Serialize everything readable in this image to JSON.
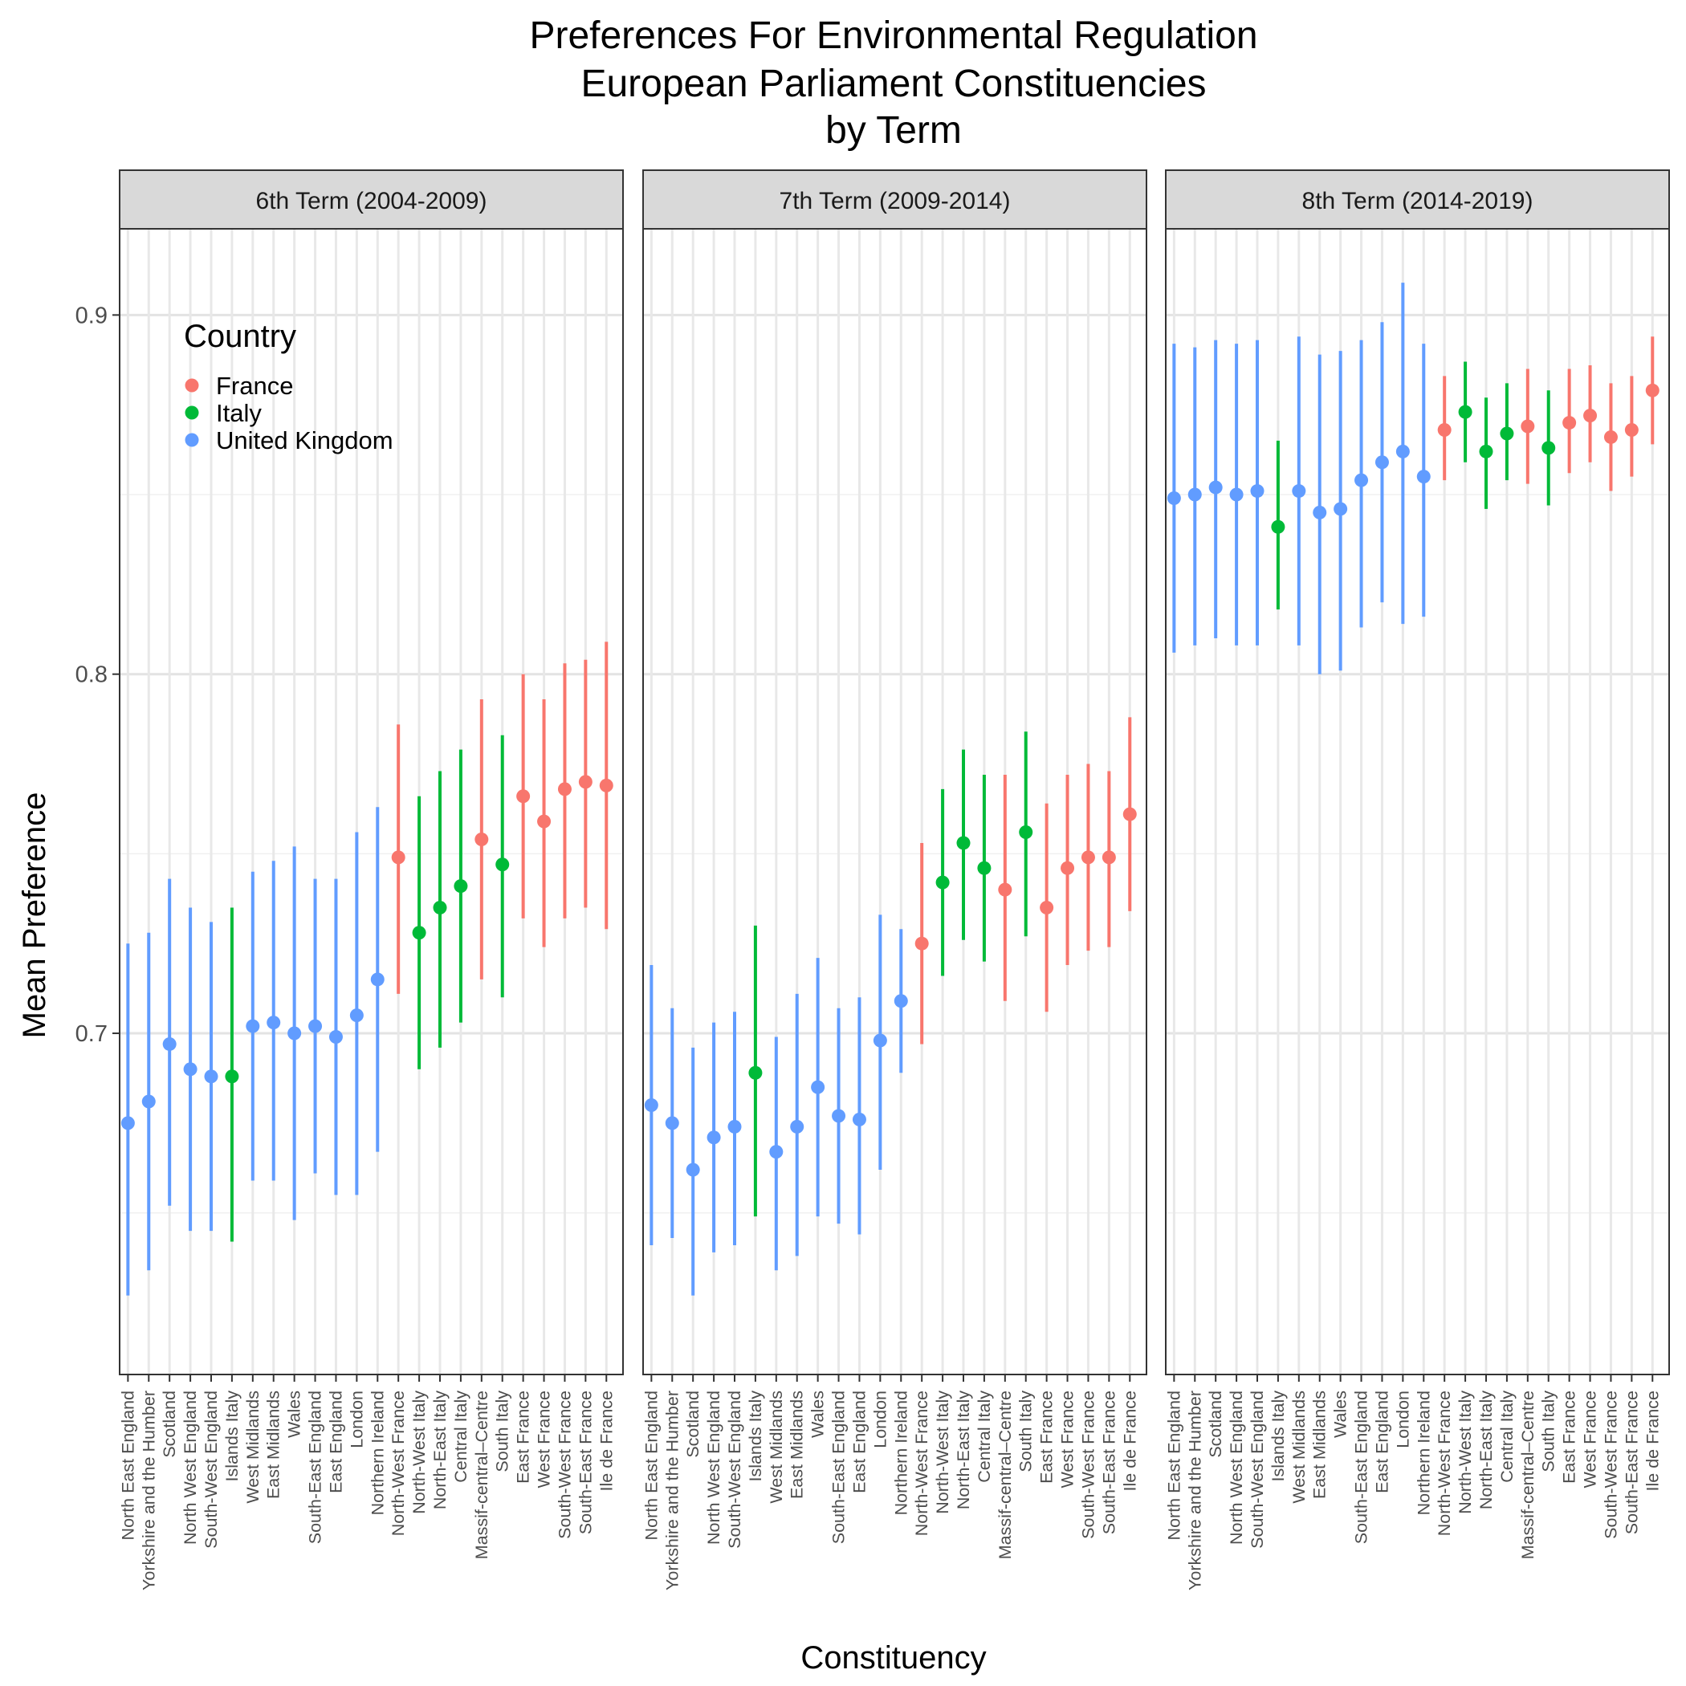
{
  "chart_data": {
    "type": "scatter",
    "title": [
      "Preferences For Environmental Regulation",
      "European Parliament Constituencies",
      "by Term"
    ],
    "xlabel": "Constituency",
    "ylabel": "Mean Preference",
    "ylim": [
      0.605,
      0.924
    ],
    "yticks": [
      0.7,
      0.8,
      0.9
    ],
    "ytick_labels": [
      "0.7",
      "0.8",
      "0.9"
    ],
    "grid": true,
    "legend": {
      "title": "Country",
      "position": "top-left inside first panel",
      "entries": [
        {
          "label": "France",
          "color": "#F8766D"
        },
        {
          "label": "Italy",
          "color": "#00BA38"
        },
        {
          "label": "United Kingdom",
          "color": "#619CFF"
        }
      ]
    },
    "panels": [
      {
        "title": "6th Term (2004-2009)",
        "points": [
          {
            "label": "North East England",
            "country": "United Kingdom",
            "mean": 0.675,
            "lower": 0.627,
            "upper": 0.725
          },
          {
            "label": "Yorkshire and the Humber",
            "country": "United Kingdom",
            "mean": 0.681,
            "lower": 0.634,
            "upper": 0.728
          },
          {
            "label": "Scotland",
            "country": "United Kingdom",
            "mean": 0.697,
            "lower": 0.652,
            "upper": 0.743
          },
          {
            "label": "North West England",
            "country": "United Kingdom",
            "mean": 0.69,
            "lower": 0.645,
            "upper": 0.735
          },
          {
            "label": "South-West England",
            "country": "United Kingdom",
            "mean": 0.688,
            "lower": 0.645,
            "upper": 0.731
          },
          {
            "label": "Islands Italy",
            "country": "Italy",
            "mean": 0.688,
            "lower": 0.642,
            "upper": 0.735
          },
          {
            "label": "West Midlands",
            "country": "United Kingdom",
            "mean": 0.702,
            "lower": 0.659,
            "upper": 0.745
          },
          {
            "label": "East Midlands",
            "country": "United Kingdom",
            "mean": 0.703,
            "lower": 0.659,
            "upper": 0.748
          },
          {
            "label": "Wales",
            "country": "United Kingdom",
            "mean": 0.7,
            "lower": 0.648,
            "upper": 0.752
          },
          {
            "label": "South-East England",
            "country": "United Kingdom",
            "mean": 0.702,
            "lower": 0.661,
            "upper": 0.743
          },
          {
            "label": "East England",
            "country": "United Kingdom",
            "mean": 0.699,
            "lower": 0.655,
            "upper": 0.743
          },
          {
            "label": "London",
            "country": "United Kingdom",
            "mean": 0.705,
            "lower": 0.655,
            "upper": 0.756
          },
          {
            "label": "Northern Ireland",
            "country": "United Kingdom",
            "mean": 0.715,
            "lower": 0.667,
            "upper": 0.763
          },
          {
            "label": "North-West France",
            "country": "France",
            "mean": 0.749,
            "lower": 0.711,
            "upper": 0.786
          },
          {
            "label": "North-West Italy",
            "country": "Italy",
            "mean": 0.728,
            "lower": 0.69,
            "upper": 0.766
          },
          {
            "label": "North-East Italy",
            "country": "Italy",
            "mean": 0.735,
            "lower": 0.696,
            "upper": 0.773
          },
          {
            "label": "Central Italy",
            "country": "Italy",
            "mean": 0.741,
            "lower": 0.703,
            "upper": 0.779
          },
          {
            "label": "Massif-central–Centre",
            "country": "France",
            "mean": 0.754,
            "lower": 0.715,
            "upper": 0.793
          },
          {
            "label": "South Italy",
            "country": "Italy",
            "mean": 0.747,
            "lower": 0.71,
            "upper": 0.783
          },
          {
            "label": "East France",
            "country": "France",
            "mean": 0.766,
            "lower": 0.732,
            "upper": 0.8
          },
          {
            "label": "West France",
            "country": "France",
            "mean": 0.759,
            "lower": 0.724,
            "upper": 0.793
          },
          {
            "label": "South-West France",
            "country": "France",
            "mean": 0.768,
            "lower": 0.732,
            "upper": 0.803
          },
          {
            "label": "South-East France",
            "country": "France",
            "mean": 0.77,
            "lower": 0.735,
            "upper": 0.804
          },
          {
            "label": "Ile de France",
            "country": "France",
            "mean": 0.769,
            "lower": 0.729,
            "upper": 0.809
          }
        ]
      },
      {
        "title": "7th Term (2009-2014)",
        "points": [
          {
            "label": "North East England",
            "country": "United Kingdom",
            "mean": 0.68,
            "lower": 0.641,
            "upper": 0.719
          },
          {
            "label": "Yorkshire and the Humber",
            "country": "United Kingdom",
            "mean": 0.675,
            "lower": 0.643,
            "upper": 0.707
          },
          {
            "label": "Scotland",
            "country": "United Kingdom",
            "mean": 0.662,
            "lower": 0.627,
            "upper": 0.696
          },
          {
            "label": "North West England",
            "country": "United Kingdom",
            "mean": 0.671,
            "lower": 0.639,
            "upper": 0.703
          },
          {
            "label": "South-West England",
            "country": "United Kingdom",
            "mean": 0.674,
            "lower": 0.641,
            "upper": 0.706
          },
          {
            "label": "Islands Italy",
            "country": "Italy",
            "mean": 0.689,
            "lower": 0.649,
            "upper": 0.73
          },
          {
            "label": "West Midlands",
            "country": "United Kingdom",
            "mean": 0.667,
            "lower": 0.634,
            "upper": 0.699
          },
          {
            "label": "East Midlands",
            "country": "United Kingdom",
            "mean": 0.674,
            "lower": 0.638,
            "upper": 0.711
          },
          {
            "label": "Wales",
            "country": "United Kingdom",
            "mean": 0.685,
            "lower": 0.649,
            "upper": 0.721
          },
          {
            "label": "South-East England",
            "country": "United Kingdom",
            "mean": 0.677,
            "lower": 0.647,
            "upper": 0.707
          },
          {
            "label": "East England",
            "country": "United Kingdom",
            "mean": 0.676,
            "lower": 0.644,
            "upper": 0.71
          },
          {
            "label": "London",
            "country": "United Kingdom",
            "mean": 0.698,
            "lower": 0.662,
            "upper": 0.733
          },
          {
            "label": "Northern Ireland",
            "country": "United Kingdom",
            "mean": 0.709,
            "lower": 0.689,
            "upper": 0.729
          },
          {
            "label": "North-West France",
            "country": "France",
            "mean": 0.725,
            "lower": 0.697,
            "upper": 0.753
          },
          {
            "label": "North-West Italy",
            "country": "Italy",
            "mean": 0.742,
            "lower": 0.716,
            "upper": 0.768
          },
          {
            "label": "North-East Italy",
            "country": "Italy",
            "mean": 0.753,
            "lower": 0.726,
            "upper": 0.779
          },
          {
            "label": "Central Italy",
            "country": "Italy",
            "mean": 0.746,
            "lower": 0.72,
            "upper": 0.772
          },
          {
            "label": "Massif-central–Centre",
            "country": "France",
            "mean": 0.74,
            "lower": 0.709,
            "upper": 0.772
          },
          {
            "label": "South Italy",
            "country": "Italy",
            "mean": 0.756,
            "lower": 0.727,
            "upper": 0.784
          },
          {
            "label": "East France",
            "country": "France",
            "mean": 0.735,
            "lower": 0.706,
            "upper": 0.764
          },
          {
            "label": "West France",
            "country": "France",
            "mean": 0.746,
            "lower": 0.719,
            "upper": 0.772
          },
          {
            "label": "South-West France",
            "country": "France",
            "mean": 0.749,
            "lower": 0.723,
            "upper": 0.775
          },
          {
            "label": "South-East France",
            "country": "France",
            "mean": 0.749,
            "lower": 0.724,
            "upper": 0.773
          },
          {
            "label": "Ile de France",
            "country": "France",
            "mean": 0.761,
            "lower": 0.734,
            "upper": 0.788
          }
        ]
      },
      {
        "title": "8th Term (2014-2019)",
        "points": [
          {
            "label": "North East England",
            "country": "United Kingdom",
            "mean": 0.849,
            "lower": 0.806,
            "upper": 0.892
          },
          {
            "label": "Yorkshire and the Humber",
            "country": "United Kingdom",
            "mean": 0.85,
            "lower": 0.808,
            "upper": 0.891
          },
          {
            "label": "Scotland",
            "country": "United Kingdom",
            "mean": 0.852,
            "lower": 0.81,
            "upper": 0.893
          },
          {
            "label": "North West England",
            "country": "United Kingdom",
            "mean": 0.85,
            "lower": 0.808,
            "upper": 0.892
          },
          {
            "label": "South-West England",
            "country": "United Kingdom",
            "mean": 0.851,
            "lower": 0.808,
            "upper": 0.893
          },
          {
            "label": "Islands Italy",
            "country": "Italy",
            "mean": 0.841,
            "lower": 0.818,
            "upper": 0.865
          },
          {
            "label": "West Midlands",
            "country": "United Kingdom",
            "mean": 0.851,
            "lower": 0.808,
            "upper": 0.894
          },
          {
            "label": "East Midlands",
            "country": "United Kingdom",
            "mean": 0.845,
            "lower": 0.8,
            "upper": 0.889
          },
          {
            "label": "Wales",
            "country": "United Kingdom",
            "mean": 0.846,
            "lower": 0.801,
            "upper": 0.89
          },
          {
            "label": "South-East England",
            "country": "United Kingdom",
            "mean": 0.854,
            "lower": 0.813,
            "upper": 0.893
          },
          {
            "label": "East England",
            "country": "United Kingdom",
            "mean": 0.859,
            "lower": 0.82,
            "upper": 0.898
          },
          {
            "label": "London",
            "country": "United Kingdom",
            "mean": 0.862,
            "lower": 0.814,
            "upper": 0.909
          },
          {
            "label": "Northern Ireland",
            "country": "United Kingdom",
            "mean": 0.855,
            "lower": 0.816,
            "upper": 0.892
          },
          {
            "label": "North-West France",
            "country": "France",
            "mean": 0.868,
            "lower": 0.854,
            "upper": 0.883
          },
          {
            "label": "North-West Italy",
            "country": "Italy",
            "mean": 0.873,
            "lower": 0.859,
            "upper": 0.887
          },
          {
            "label": "North-East Italy",
            "country": "Italy",
            "mean": 0.862,
            "lower": 0.846,
            "upper": 0.877
          },
          {
            "label": "Central Italy",
            "country": "Italy",
            "mean": 0.867,
            "lower": 0.854,
            "upper": 0.881
          },
          {
            "label": "Massif-central–Centre",
            "country": "France",
            "mean": 0.869,
            "lower": 0.853,
            "upper": 0.885
          },
          {
            "label": "South Italy",
            "country": "Italy",
            "mean": 0.863,
            "lower": 0.847,
            "upper": 0.879
          },
          {
            "label": "East France",
            "country": "France",
            "mean": 0.87,
            "lower": 0.856,
            "upper": 0.885
          },
          {
            "label": "West France",
            "country": "France",
            "mean": 0.872,
            "lower": 0.859,
            "upper": 0.886
          },
          {
            "label": "South-West France",
            "country": "France",
            "mean": 0.866,
            "lower": 0.851,
            "upper": 0.881
          },
          {
            "label": "South-East France",
            "country": "France",
            "mean": 0.868,
            "lower": 0.855,
            "upper": 0.883
          },
          {
            "label": "Ile de France",
            "country": "France",
            "mean": 0.879,
            "lower": 0.864,
            "upper": 0.894
          }
        ]
      }
    ]
  }
}
